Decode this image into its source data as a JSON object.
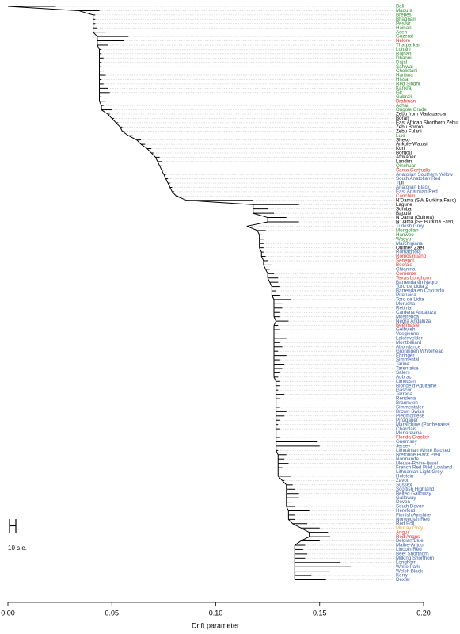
{
  "chart_data": {
    "type": "tree",
    "xlabel": "Drift parameter",
    "scale_label": "10 s.e.",
    "xlim": [
      0,
      0.2
    ],
    "xticks": [
      {
        "value": 0,
        "label": "0.00"
      },
      {
        "value": 0.05,
        "label": "0.05"
      },
      {
        "value": 0.1,
        "label": "0.10"
      },
      {
        "value": 0.15,
        "label": "0.15"
      },
      {
        "value": 0.2,
        "label": "0.20"
      }
    ],
    "leaves": [
      "Bali",
      "Madura",
      "Brebes",
      "Bhagnari",
      "Pesisir",
      "Hainan",
      "Aceh",
      "Guzerat",
      "Nelore",
      "Tharparkar",
      "Lohani",
      "Rojhan",
      "Dhanni",
      "Dajal",
      "Sahiwal",
      "Cholistani",
      "Hariana",
      "Hissar",
      "Red Sindhi",
      "Kankraj",
      "Gir",
      "Gabrali",
      "Brahman",
      "Achai",
      "Ongole Grade",
      "Zebu from Madagascar",
      "Boran",
      "East African Shorthorn Zebu",
      "Zebu Bororo",
      "Zebu Fulani",
      "Luxi",
      "Sheko",
      "Ankole-Watusi",
      "Kuri",
      "Borgou",
      "Afrikaner",
      "Landim",
      "Qinchuan",
      "Santa Gertrudis",
      "Anatolian Southern Yellow",
      "South Anatolian Red",
      "Tuli",
      "Anatolian Black",
      "East Anatolian Red",
      "Canchim",
      "N'Dama (SW Burkina Faso)",
      "Lagune",
      "Somba",
      "Baoulé",
      "N'Dama (Guinea)",
      "N'Dama (SE Burkina Faso)",
      "Turkish Grey",
      "Mongolian",
      "Hanwoo",
      "Wagyu",
      "Marchigiana",
      "Oulmès Zaer",
      "Romagnola",
      "Romosinuano",
      "Senepol",
      "Beefalo",
      "Chianina",
      "Corriente",
      "Texas Longhorn",
      "Barrenda en Negro",
      "Toro de Lidia 2",
      "Barrenda en Colorado",
      "Pirenaica",
      "Toro de Lidia",
      "Morucha",
      "Retinta",
      "Cárdena Andaluza",
      "Mostrenca",
      "Negra Andaluza",
      "Beefmaster",
      "Gelbvieh",
      "Vosgienne",
      "Lakenvelder",
      "Montbéliard",
      "Abondance",
      "Groningen Whitehead",
      "Ehringer",
      "Simmental",
      "Tarine",
      "Tarentaise",
      "Salers",
      "Aubrac",
      "Limousin",
      "Blonde d'Aquitaine",
      "Gascon",
      "Terrana",
      "Rendena",
      "Braunvieh",
      "Simmentaler",
      "Brown Swiss",
      "Piedmontese",
      "Pinzgauer",
      "Maraîchine (Parthenaise)",
      "Charolais",
      "Menorquina",
      "Florida Cracker",
      "Guernsey",
      "Jersey",
      "Lithuanian White Backed",
      "Bretonne Black Pied",
      "Normande",
      "Meuse-Rhine-Ijssel",
      "French Red Pied Lowland",
      "Lithuanian Light Grey",
      "Holstein",
      "Zavot",
      "Sussex",
      "Scottish Highland",
      "Belted Galloway",
      "Galloway",
      "Devon",
      "South Devon",
      "Hereford",
      "Finnish Ayrshire",
      "Norwegian Red",
      "Red Poll",
      "Murray Grey",
      "Angus",
      "Red Angus",
      "Belgian Blue",
      "Maine-Anjou",
      "Lincoln Red",
      "Beef Shorthorn",
      "Milking Shorthorn",
      "Longhorn",
      "White Park",
      "Welsh Black",
      "Kerry",
      "Dexter"
    ],
    "colors": [
      "#2e8b2e",
      "#2e8b2e",
      "#2e8b2e",
      "#2e8b2e",
      "#2e8b2e",
      "#2e8b2e",
      "#2e8b2e",
      "#2e8b2e",
      "#e0302a",
      "#2e8b2e",
      "#2e8b2e",
      "#2e8b2e",
      "#2e8b2e",
      "#2e8b2e",
      "#2e8b2e",
      "#2e8b2e",
      "#2e8b2e",
      "#2e8b2e",
      "#2e8b2e",
      "#2e8b2e",
      "#2e8b2e",
      "#2e8b2e",
      "#e0302a",
      "#2e8b2e",
      "#2e8b2e",
      "#000000",
      "#000000",
      "#000000",
      "#000000",
      "#000000",
      "#2e8b2e",
      "#000000",
      "#000000",
      "#000000",
      "#000000",
      "#000000",
      "#000000",
      "#2e8b2e",
      "#e0302a",
      "#3a5fa8",
      "#3a5fa8",
      "#000000",
      "#3a5fa8",
      "#3a5fa8",
      "#e0302a",
      "#000000",
      "#000000",
      "#000000",
      "#000000",
      "#000000",
      "#000000",
      "#3a5fa8",
      "#2e8b2e",
      "#2e8b2e",
      "#2e8b2e",
      "#3a5fa8",
      "#000000",
      "#3a5fa8",
      "#e0302a",
      "#e0302a",
      "#e0302a",
      "#3a5fa8",
      "#e0302a",
      "#e0302a",
      "#3a5fa8",
      "#3a5fa8",
      "#3a5fa8",
      "#3a5fa8",
      "#3a5fa8",
      "#3a5fa8",
      "#3a5fa8",
      "#3a5fa8",
      "#3a5fa8",
      "#3a5fa8",
      "#e0302a",
      "#3a5fa8",
      "#3a5fa8",
      "#3a5fa8",
      "#3a5fa8",
      "#3a5fa8",
      "#3a5fa8",
      "#3a5fa8",
      "#3a5fa8",
      "#3a5fa8",
      "#3a5fa8",
      "#3a5fa8",
      "#3a5fa8",
      "#3a5fa8",
      "#3a5fa8",
      "#3a5fa8",
      "#3a5fa8",
      "#3a5fa8",
      "#3a5fa8",
      "#3a5fa8",
      "#3a5fa8",
      "#3a5fa8",
      "#3a5fa8",
      "#3a5fa8",
      "#3a5fa8",
      "#3a5fa8",
      "#e0302a",
      "#3a5fa8",
      "#3a5fa8",
      "#3a5fa8",
      "#3a5fa8",
      "#3a5fa8",
      "#3a5fa8",
      "#3a5fa8",
      "#3a5fa8",
      "#3a5fa8",
      "#3a5fa8",
      "#3a5fa8",
      "#3a5fa8",
      "#3a5fa8",
      "#3a5fa8",
      "#3a5fa8",
      "#3a5fa8",
      "#3a5fa8",
      "#3a5fa8",
      "#3a5fa8",
      "#3a5fa8",
      "#f0a030",
      "#e0302a",
      "#e0302a",
      "#3a5fa8",
      "#3a5fa8",
      "#3a5fa8",
      "#3a5fa8",
      "#3a5fa8",
      "#3a5fa8",
      "#3a5fa8",
      "#3a5fa8",
      "#3a5fa8",
      "#3a5fa8"
    ],
    "nodes": [
      0,
      0.034,
      0.041,
      0.041,
      0.041,
      0.041,
      0.041,
      0.043,
      0.043,
      0.043,
      0.044,
      0.044,
      0.044,
      0.044,
      0.044,
      0.044,
      0.044,
      0.044,
      0.044,
      0.044,
      0.044,
      0.044,
      0.044,
      0.045,
      0.045,
      0.048,
      0.05,
      0.052,
      0.054,
      0.055,
      0.058,
      0.062,
      0.064,
      0.067,
      0.069,
      0.071,
      0.072,
      0.073,
      0.074,
      0.075,
      0.076,
      0.077,
      0.078,
      0.079,
      0.081,
      0.086,
      0.118,
      0.118,
      0.118,
      0.125,
      0.125,
      0.115,
      0.12,
      0.121,
      0.121,
      0.121,
      0.121,
      0.122,
      0.122,
      0.123,
      0.123,
      0.124,
      0.125,
      0.125,
      0.126,
      0.127,
      0.127,
      0.127,
      0.128,
      0.128,
      0.128,
      0.128,
      0.128,
      0.129,
      0.128,
      0.128,
      0.128,
      0.128,
      0.128,
      0.128,
      0.128,
      0.128,
      0.128,
      0.128,
      0.128,
      0.128,
      0.128,
      0.129,
      0.129,
      0.129,
      0.129,
      0.129,
      0.129,
      0.129,
      0.129,
      0.129,
      0.129,
      0.129,
      0.129,
      0.129,
      0.129,
      0.129,
      0.129,
      0.129,
      0.13,
      0.13,
      0.13,
      0.13,
      0.13,
      0.13,
      0.132,
      0.134,
      0.134,
      0.134,
      0.134,
      0.134,
      0.134,
      0.135,
      0.135,
      0.135,
      0.137,
      0.141,
      0.145,
      0.145,
      0.141,
      0.138,
      0.138,
      0.138,
      0.138,
      0.138,
      0.138,
      0.138,
      0.138,
      0.138
    ],
    "tips": [
      0.023,
      0.044,
      0.042,
      0.042,
      0.042,
      0.043,
      0.047,
      0.058,
      0.056,
      0.048,
      0.045,
      0.045,
      0.046,
      0.045,
      0.045,
      0.046,
      0.047,
      0.045,
      0.046,
      0.048,
      0.049,
      0.045,
      0.047,
      0.046,
      0.05,
      0.049,
      0.051,
      0.053,
      0.055,
      0.056,
      0.06,
      0.064,
      0.066,
      0.069,
      0.07,
      0.073,
      0.074,
      0.074,
      0.075,
      0.076,
      0.077,
      0.078,
      0.079,
      0.08,
      0.082,
      0.118,
      0.14,
      0.125,
      0.128,
      0.134,
      0.14,
      0.116,
      0.124,
      0.122,
      0.123,
      0.123,
      0.123,
      0.123,
      0.124,
      0.125,
      0.127,
      0.126,
      0.128,
      0.13,
      0.13,
      0.131,
      0.129,
      0.131,
      0.136,
      0.132,
      0.132,
      0.131,
      0.131,
      0.135,
      0.13,
      0.131,
      0.13,
      0.134,
      0.131,
      0.132,
      0.13,
      0.134,
      0.131,
      0.133,
      0.132,
      0.131,
      0.13,
      0.131,
      0.131,
      0.13,
      0.133,
      0.131,
      0.134,
      0.131,
      0.134,
      0.133,
      0.131,
      0.13,
      0.131,
      0.138,
      0.131,
      0.149,
      0.15,
      0.13,
      0.134,
      0.133,
      0.135,
      0.132,
      0.131,
      0.136,
      0.133,
      0.137,
      0.138,
      0.14,
      0.14,
      0.137,
      0.138,
      0.145,
      0.138,
      0.138,
      0.144,
      0.15,
      0.154,
      0.155,
      0.15,
      0.143,
      0.142,
      0.144,
      0.143,
      0.16,
      0.165,
      0.155,
      0.146,
      0.153
    ]
  }
}
